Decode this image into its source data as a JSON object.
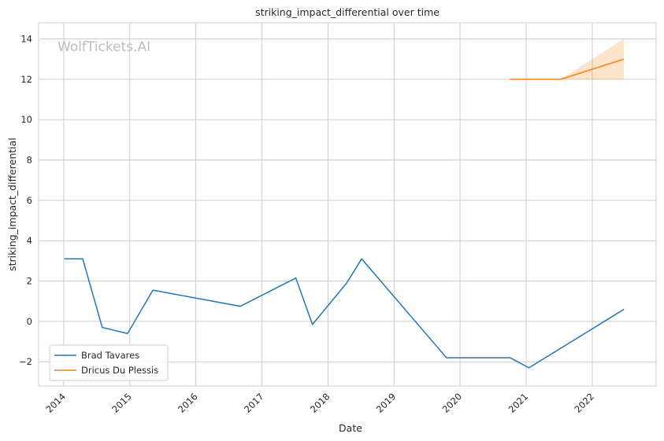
{
  "chart_data": {
    "type": "line",
    "title": "striking_impact_differential over time",
    "xlabel": "Date",
    "ylabel": "striking_impact_differential",
    "watermark": "WolfTickets.AI",
    "xlim": [
      "2013-08-15",
      "2022-12-20"
    ],
    "ylim": [
      -3.2,
      14.8
    ],
    "x_ticks": [
      "2014",
      "2015",
      "2016",
      "2017",
      "2018",
      "2019",
      "2020",
      "2021",
      "2022"
    ],
    "y_ticks": [
      -2,
      0,
      2,
      4,
      6,
      8,
      10,
      12,
      14
    ],
    "y_tick_labels": [
      "−2",
      "0",
      "2",
      "4",
      "6",
      "8",
      "10",
      "12",
      "14"
    ],
    "grid": true,
    "legend_position": "lower-left",
    "series": [
      {
        "name": "Brad Tavares",
        "color": "#1f77b4",
        "points": [
          {
            "x": "2014-01-04",
            "y": 3.1
          },
          {
            "x": "2014-04-16",
            "y": 3.1
          },
          {
            "x": "2014-08-02",
            "y": -0.3
          },
          {
            "x": "2014-12-20",
            "y": -0.6
          },
          {
            "x": "2015-05-09",
            "y": 1.55
          },
          {
            "x": "2016-09-03",
            "y": 0.75
          },
          {
            "x": "2017-07-07",
            "y": 2.15
          },
          {
            "x": "2017-10-07",
            "y": -0.15
          },
          {
            "x": "2018-04-14",
            "y": 1.9
          },
          {
            "x": "2018-07-06",
            "y": 3.1
          },
          {
            "x": "2019-10-18",
            "y": -1.8
          },
          {
            "x": "2020-10-03",
            "y": -1.8
          },
          {
            "x": "2021-01-16",
            "y": -2.3
          },
          {
            "x": "2022-06-25",
            "y": 0.6
          }
        ]
      },
      {
        "name": "Dricus Du Plessis",
        "color": "#ff7f0e",
        "points": [
          {
            "x": "2020-10-03",
            "y": 12
          },
          {
            "x": "2021-07-10",
            "y": 12
          },
          {
            "x": "2022-06-25",
            "y": 13
          }
        ],
        "band": [
          {
            "x": "2021-07-10",
            "low": 12,
            "high": 12
          },
          {
            "x": "2022-06-25",
            "low": 12,
            "high": 14
          }
        ]
      }
    ]
  }
}
